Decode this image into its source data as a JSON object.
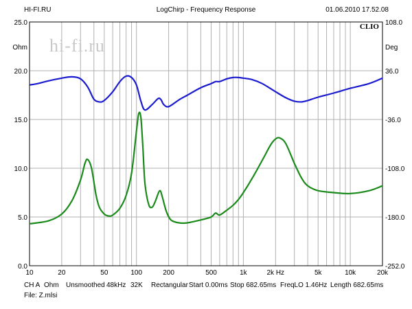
{
  "header": {
    "left": "HI-FI.RU",
    "center": "LogChirp - Frequency Response",
    "right": "01.06.2010 17.52.08"
  },
  "watermark": "hi-fi.ru",
  "brand": "CLIO",
  "footer": {
    "line1": [
      "CH A",
      "Ohm",
      "Unsmoothed",
      "48kHz",
      "32K",
      "Rectangular",
      "Start 0.00ms",
      "Stop 682.65ms",
      "FreqLO 1.46Hz",
      "Length 682.65ms"
    ],
    "line2": "File: Z.mlsi"
  },
  "colors": {
    "magnitude": "#1a1ad0",
    "phase": "#1a8a1a",
    "grid": "#b0b0b0"
  },
  "chart_data": {
    "type": "line",
    "x_scale": "log",
    "xlim": [
      10,
      20000
    ],
    "ylim_left": [
      0,
      25
    ],
    "ylim_right": [
      -252,
      108
    ],
    "ylabel_left": "Ohm",
    "ylabel_right": "Deg",
    "x_tick_labels": [
      {
        "v": 10,
        "t": "10"
      },
      {
        "v": 20,
        "t": "20"
      },
      {
        "v": 50,
        "t": "50"
      },
      {
        "v": 100,
        "t": "100"
      },
      {
        "v": 200,
        "t": "200"
      },
      {
        "v": 500,
        "t": "500"
      },
      {
        "v": 1000,
        "t": "1k"
      },
      {
        "v": 2000,
        "t": "2k Hz"
      },
      {
        "v": 5000,
        "t": "5k"
      },
      {
        "v": 10000,
        "t": "10k"
      },
      {
        "v": 20000,
        "t": "20k"
      }
    ],
    "y_left_ticks": [
      {
        "v": 0,
        "t": "0.0"
      },
      {
        "v": 5,
        "t": "5.0"
      },
      {
        "v": 10,
        "t": "10.0"
      },
      {
        "v": 15,
        "t": "15.0"
      },
      {
        "v": 20,
        "t": "20.0"
      },
      {
        "v": 25,
        "t": "25.0"
      }
    ],
    "y_right_ticks": [
      {
        "v": -252,
        "t": "-252.0"
      },
      {
        "v": -180,
        "t": "-180.0"
      },
      {
        "v": -108,
        "t": "-108.0"
      },
      {
        "v": -36,
        "t": "-36.0"
      },
      {
        "v": 36,
        "t": "36.0"
      },
      {
        "v": 108,
        "t": "108.0"
      }
    ],
    "series": [
      {
        "axis": "right",
        "color": "#1a1ad0",
        "points": [
          [
            10,
            15.0
          ],
          [
            12,
            17.0
          ],
          [
            15,
            21.0
          ],
          [
            20,
            25.0
          ],
          [
            25,
            27.0
          ],
          [
            30,
            24.0
          ],
          [
            35,
            12.0
          ],
          [
            40,
            -6.0
          ],
          [
            45,
            -10.0
          ],
          [
            50,
            -8.0
          ],
          [
            60,
            5.0
          ],
          [
            70,
            20.0
          ],
          [
            80,
            28.0
          ],
          [
            90,
            26.0
          ],
          [
            100,
            15.0
          ],
          [
            110,
            -9.0
          ],
          [
            120,
            -22.0
          ],
          [
            140,
            -14.0
          ],
          [
            160,
            -5.0
          ],
          [
            170,
            -7.0
          ],
          [
            180,
            -14.0
          ],
          [
            200,
            -17.0
          ],
          [
            250,
            -7.0
          ],
          [
            300,
            0.0
          ],
          [
            400,
            11.0
          ],
          [
            500,
            17.0
          ],
          [
            550,
            20.0
          ],
          [
            600,
            20.0
          ],
          [
            700,
            24.0
          ],
          [
            800,
            26.0
          ],
          [
            900,
            26.0
          ],
          [
            1000,
            25.0
          ],
          [
            1200,
            23.0
          ],
          [
            1500,
            17.0
          ],
          [
            2000,
            5.0
          ],
          [
            2500,
            -4.0
          ],
          [
            3000,
            -9.0
          ],
          [
            3500,
            -10.0
          ],
          [
            4000,
            -8.0
          ],
          [
            5000,
            -3.0
          ],
          [
            7000,
            3.0
          ],
          [
            10000,
            10.0
          ],
          [
            15000,
            17.0
          ],
          [
            20000,
            25.0
          ]
        ]
      },
      {
        "axis": "left",
        "color": "#1a8a1a",
        "points": [
          [
            10,
            4.3
          ],
          [
            15,
            4.6
          ],
          [
            20,
            5.3
          ],
          [
            25,
            6.7
          ],
          [
            30,
            8.8
          ],
          [
            33,
            10.5
          ],
          [
            35,
            10.9
          ],
          [
            38,
            10.0
          ],
          [
            42,
            7.2
          ],
          [
            45,
            6.0
          ],
          [
            50,
            5.3
          ],
          [
            55,
            5.1
          ],
          [
            60,
            5.2
          ],
          [
            70,
            5.9
          ],
          [
            80,
            7.2
          ],
          [
            90,
            9.5
          ],
          [
            100,
            13.8
          ],
          [
            105,
            15.6
          ],
          [
            110,
            15.2
          ],
          [
            115,
            12.0
          ],
          [
            120,
            8.5
          ],
          [
            130,
            6.3
          ],
          [
            140,
            6.0
          ],
          [
            150,
            6.6
          ],
          [
            165,
            7.7
          ],
          [
            175,
            7.0
          ],
          [
            190,
            5.6
          ],
          [
            210,
            4.7
          ],
          [
            250,
            4.4
          ],
          [
            300,
            4.4
          ],
          [
            400,
            4.7
          ],
          [
            500,
            5.0
          ],
          [
            550,
            5.4
          ],
          [
            600,
            5.2
          ],
          [
            700,
            5.7
          ],
          [
            800,
            6.2
          ],
          [
            900,
            6.8
          ],
          [
            1000,
            7.5
          ],
          [
            1200,
            8.9
          ],
          [
            1500,
            10.8
          ],
          [
            1800,
            12.4
          ],
          [
            2000,
            13.0
          ],
          [
            2200,
            13.1
          ],
          [
            2500,
            12.5
          ],
          [
            3000,
            10.5
          ],
          [
            3500,
            9.0
          ],
          [
            4000,
            8.2
          ],
          [
            5000,
            7.7
          ],
          [
            7000,
            7.5
          ],
          [
            10000,
            7.4
          ],
          [
            15000,
            7.7
          ],
          [
            20000,
            8.2
          ]
        ]
      }
    ]
  }
}
